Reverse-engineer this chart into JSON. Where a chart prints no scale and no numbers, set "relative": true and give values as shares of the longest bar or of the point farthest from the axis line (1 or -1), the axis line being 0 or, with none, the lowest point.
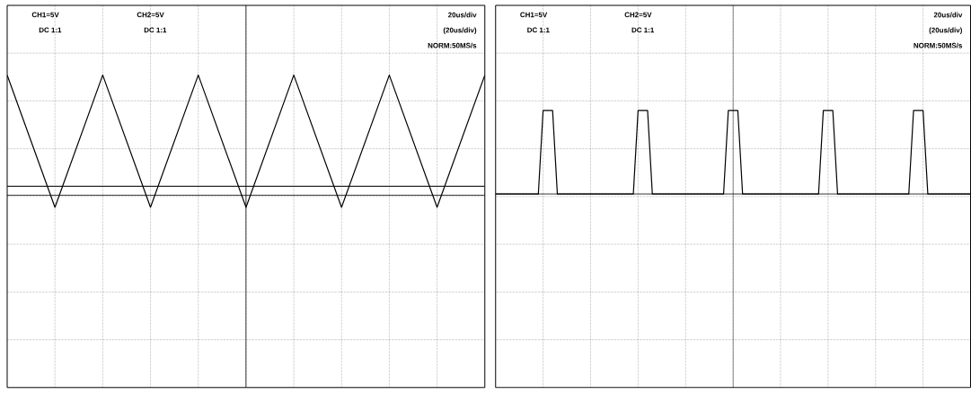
{
  "chart_data": [
    {
      "type": "line",
      "relative": true,
      "grid": true,
      "tick_labels": false,
      "categories": [
        null,
        null,
        null,
        null,
        null,
        null,
        null,
        null,
        null,
        null,
        null
      ],
      "annotations": [
        "CH1=5V",
        "DC 1:1",
        "CH2=5V",
        "DC 1:1",
        "20us/div",
        "(20us/div)",
        "NORM:50MS/s"
      ],
      "ref_lines": [
        {
          "axis": "y",
          "value": 0.075,
          "color": "#000000"
        }
      ],
      "series": [
        {
          "color": "#000000",
          "values": [
            1,
            -0.1,
            1,
            -0.1,
            1,
            -0.1,
            1,
            -0.1,
            1,
            -0.1,
            1
          ]
        }
      ]
    },
    {
      "type": "line",
      "relative": true,
      "grid": true,
      "tick_labels": false,
      "categories": [
        null,
        null,
        null,
        null,
        null,
        null,
        null,
        null,
        null,
        null,
        null,
        null,
        null,
        null,
        null,
        null,
        null,
        null,
        null,
        null,
        null,
        null,
        null,
        null,
        null,
        null,
        null,
        null,
        null,
        null,
        null,
        null,
        null,
        null,
        null,
        null,
        null,
        null,
        null,
        null,
        null,
        null,
        null,
        null,
        null,
        null,
        null,
        null,
        null,
        null,
        null,
        null,
        null,
        null,
        null,
        null,
        null,
        null,
        null,
        null,
        null,
        null,
        null,
        null,
        null,
        null,
        null,
        null,
        null,
        null,
        null,
        null,
        null,
        null,
        null,
        null,
        null,
        null,
        null,
        null,
        null,
        null,
        null,
        null,
        null,
        null,
        null,
        null,
        null,
        null,
        null,
        null,
        null,
        null,
        null,
        null,
        null,
        null,
        null,
        null,
        null
      ],
      "annotations": [
        "CH1=5V",
        "DC 1:1",
        "CH2=5V",
        "DC 1:1",
        "20us/div",
        "(20us/div)",
        "NORM:50MS/s"
      ],
      "series": [
        {
          "color": "#000000",
          "values": [
            0,
            0,
            0,
            0,
            0,
            0,
            0,
            0,
            0,
            0,
            1,
            1,
            1,
            0,
            0,
            0,
            0,
            0,
            0,
            0,
            0,
            0,
            0,
            0,
            0,
            0,
            0,
            0,
            0,
            0,
            1,
            1,
            1,
            0,
            0,
            0,
            0,
            0,
            0,
            0,
            0,
            0,
            0,
            0,
            0,
            0,
            0,
            0,
            0,
            1,
            1,
            1,
            0,
            0,
            0,
            0,
            0,
            0,
            0,
            0,
            0,
            0,
            0,
            0,
            0,
            0,
            0,
            0,
            0,
            1,
            1,
            1,
            0,
            0,
            0,
            0,
            0,
            0,
            0,
            0,
            0,
            0,
            0,
            0,
            0,
            0,
            0,
            0,
            1,
            1,
            1,
            0,
            0,
            0,
            0,
            0,
            0,
            0,
            0,
            0,
            0
          ]
        }
      ]
    }
  ]
}
